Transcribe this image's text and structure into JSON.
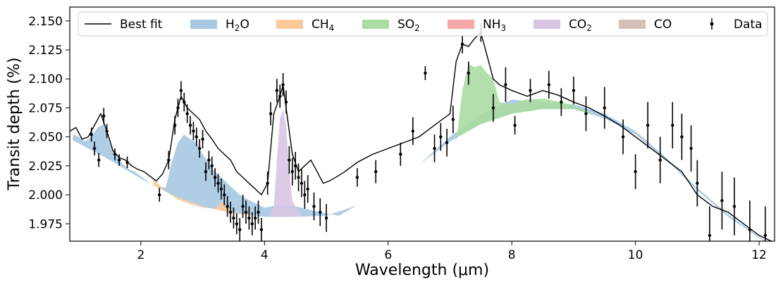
{
  "chart_data": {
    "type": "area",
    "xlabel": "Wavelength (μm)",
    "ylabel": "Transit depth (%)",
    "xlim": [
      0.85,
      12.25
    ],
    "ylim": [
      1.96,
      2.162
    ],
    "x_ticks": [
      2,
      4,
      6,
      8,
      10,
      12
    ],
    "y_ticks": [
      1.975,
      2.0,
      2.025,
      2.05,
      2.075,
      2.1,
      2.125,
      2.15
    ],
    "x_tick_labels": [
      "2",
      "4",
      "6",
      "8",
      "10",
      "12"
    ],
    "y_tick_labels": [
      "1.975",
      "2.000",
      "2.025",
      "2.050",
      "2.075",
      "2.100",
      "2.125",
      "2.150"
    ],
    "legend": [
      {
        "key": "best_fit",
        "label": "Best fit",
        "kind": "line",
        "color": "#000000"
      },
      {
        "key": "H2O",
        "label": "H",
        "sub": "2",
        "suffix": "O",
        "kind": "patch",
        "color": "#a6c8e2"
      },
      {
        "key": "CH4",
        "label": "CH",
        "sub": "4",
        "suffix": "",
        "kind": "patch",
        "color": "#fcc99a"
      },
      {
        "key": "SO2",
        "label": "SO",
        "sub": "2",
        "suffix": "",
        "kind": "patch",
        "color": "#abdca3"
      },
      {
        "key": "NH3",
        "label": "NH",
        "sub": "3",
        "suffix": "",
        "kind": "patch",
        "color": "#f4a9a8"
      },
      {
        "key": "CO2",
        "label": "CO",
        "sub": "2",
        "suffix": "",
        "kind": "patch",
        "color": "#d8c5e4"
      },
      {
        "key": "CO",
        "label": "CO",
        "sub": "",
        "suffix": "",
        "kind": "patch",
        "color": "#d6bfb8"
      },
      {
        "key": "data",
        "label": "Data",
        "kind": "errorbar",
        "color": "#000000"
      }
    ],
    "series": [
      {
        "name": "baseline",
        "x": [
          0.9,
          1.5,
          2.0,
          2.5,
          3.0,
          3.5,
          4.0,
          4.5,
          5.0,
          5.5,
          6.0,
          6.5,
          7.0,
          7.5,
          8.0,
          8.5,
          9.0,
          9.5,
          10.0,
          10.5,
          11.0,
          11.5,
          12.0,
          12.2
        ],
        "values": [
          2.047,
          2.03,
          2.014,
          2.0,
          1.99,
          1.984,
          1.981,
          1.981,
          1.982,
          1.991,
          2.007,
          2.026,
          2.046,
          2.061,
          2.07,
          2.074,
          2.074,
          2.066,
          2.052,
          2.03,
          2.004,
          1.981,
          1.963,
          1.955
        ]
      },
      {
        "name": "H2O",
        "color": "#a6c8e2",
        "x": [
          0.9,
          1.0,
          1.1,
          1.2,
          1.3,
          1.4,
          1.5,
          1.6,
          1.7,
          1.8,
          1.9,
          2.0,
          2.2,
          2.4,
          2.5,
          2.6,
          2.7,
          2.8,
          2.9,
          3.0,
          3.2,
          3.4,
          3.6,
          3.8,
          4.0,
          4.2,
          4.4,
          4.6,
          4.8,
          5.0,
          5.2,
          5.5,
          6.0,
          6.5,
          7.0,
          7.5,
          8.0,
          8.5,
          9.0,
          9.5,
          10.0,
          10.5,
          11.0,
          11.5,
          12.0,
          12.2
        ],
        "values": [
          2.052,
          2.05,
          2.046,
          2.05,
          2.058,
          2.061,
          2.044,
          2.034,
          2.027,
          2.022,
          2.02,
          2.016,
          2.008,
          2.006,
          2.028,
          2.045,
          2.052,
          2.048,
          2.045,
          2.035,
          2.02,
          2.01,
          2.0,
          1.994,
          1.989,
          1.991,
          1.991,
          1.989,
          1.986,
          1.984,
          1.982,
          1.991,
          2.007,
          2.026,
          2.05,
          2.07,
          2.082,
          2.08,
          2.078,
          2.07,
          2.055,
          2.032,
          2.006,
          1.983,
          1.964,
          1.956
        ]
      },
      {
        "name": "CH4",
        "color": "#fcc99a",
        "x": [
          2.2,
          2.4,
          2.6,
          2.8,
          3.0,
          3.2,
          3.3,
          3.4,
          3.5,
          3.6,
          3.8
        ],
        "values": [
          2.014,
          2.003,
          1.996,
          1.992,
          1.989,
          1.988,
          1.994,
          1.99,
          1.985,
          1.984,
          1.983
        ]
      },
      {
        "name": "CO2",
        "color": "#d8c5e4",
        "x": [
          4.1,
          4.15,
          4.2,
          4.25,
          4.3,
          4.35,
          4.4,
          4.45,
          4.5,
          4.55,
          4.6
        ],
        "values": [
          1.985,
          1.99,
          2.03,
          2.066,
          2.074,
          2.06,
          2.02,
          1.995,
          1.99,
          1.986,
          1.983
        ]
      },
      {
        "name": "SO2",
        "color": "#abdca3",
        "x": [
          7.1,
          7.2,
          7.3,
          7.4,
          7.5,
          7.6,
          7.7,
          7.8,
          8.0,
          8.2,
          8.5,
          8.8,
          9.0,
          9.3
        ],
        "values": [
          2.045,
          2.09,
          2.113,
          2.11,
          2.112,
          2.105,
          2.1,
          2.08,
          2.078,
          2.082,
          2.083,
          2.08,
          2.077,
          2.07
        ]
      },
      {
        "name": "Best fit",
        "color": "#000000",
        "x": [
          0.85,
          0.95,
          1.05,
          1.15,
          1.25,
          1.35,
          1.45,
          1.55,
          1.65,
          1.75,
          1.85,
          1.95,
          2.05,
          2.15,
          2.25,
          2.35,
          2.45,
          2.55,
          2.65,
          2.75,
          2.85,
          2.95,
          3.05,
          3.15,
          3.25,
          3.35,
          3.45,
          3.55,
          3.65,
          3.75,
          3.85,
          3.95,
          4.05,
          4.15,
          4.25,
          4.3,
          4.35,
          4.45,
          4.55,
          4.65,
          4.75,
          4.85,
          4.95,
          5.05,
          5.15,
          5.3,
          5.5,
          5.75,
          6.0,
          6.25,
          6.5,
          6.75,
          7.0,
          7.1,
          7.2,
          7.3,
          7.4,
          7.5,
          7.6,
          7.7,
          7.8,
          8.0,
          8.25,
          8.5,
          8.75,
          9.0,
          9.25,
          9.5,
          9.75,
          10.0,
          10.25,
          10.5,
          10.75,
          11.0,
          11.25,
          11.5,
          11.75,
          12.0,
          12.2
        ],
        "values": [
          2.055,
          2.058,
          2.048,
          2.05,
          2.06,
          2.07,
          2.055,
          2.038,
          2.032,
          2.03,
          2.025,
          2.022,
          2.02,
          2.016,
          2.012,
          2.018,
          2.03,
          2.065,
          2.085,
          2.075,
          2.07,
          2.065,
          2.055,
          2.048,
          2.04,
          2.035,
          2.03,
          2.02,
          2.015,
          2.01,
          2.005,
          2.0,
          2.01,
          2.07,
          2.085,
          2.095,
          2.075,
          2.035,
          2.02,
          2.025,
          2.03,
          2.02,
          2.01,
          2.012,
          2.015,
          2.02,
          2.028,
          2.035,
          2.04,
          2.045,
          2.05,
          2.06,
          2.07,
          2.115,
          2.13,
          2.128,
          2.135,
          2.14,
          2.12,
          2.1,
          2.095,
          2.09,
          2.085,
          2.09,
          2.086,
          2.08,
          2.075,
          2.068,
          2.06,
          2.05,
          2.04,
          2.03,
          2.02,
          2.0,
          1.99,
          1.985,
          1.975,
          1.965,
          1.96
        ]
      }
    ],
    "data_points": {
      "x": [
        1.2,
        1.25,
        1.32,
        1.4,
        1.45,
        1.58,
        1.65,
        1.78,
        2.3,
        2.45,
        2.55,
        2.6,
        2.65,
        2.7,
        2.75,
        2.8,
        2.85,
        2.9,
        2.95,
        3.0,
        3.05,
        3.1,
        3.15,
        3.2,
        3.25,
        3.3,
        3.35,
        3.4,
        3.45,
        3.5,
        3.55,
        3.6,
        3.65,
        3.7,
        3.75,
        3.8,
        3.85,
        3.9,
        3.95,
        4.05,
        4.1,
        4.2,
        4.25,
        4.3,
        4.35,
        4.4,
        4.45,
        4.5,
        4.55,
        4.6,
        4.65,
        4.7,
        4.8,
        4.9,
        5.0,
        5.5,
        5.8,
        6.2,
        6.4,
        6.6,
        6.75,
        6.85,
        6.95,
        7.05,
        7.2,
        7.3,
        7.5,
        7.7,
        7.9,
        8.05,
        8.3,
        8.6,
        8.8,
        9.0,
        9.2,
        9.5,
        9.8,
        10.0,
        10.2,
        10.4,
        10.6,
        10.75,
        10.9,
        11.0,
        11.2,
        11.4,
        11.6,
        11.85,
        12.1
      ],
      "values": [
        2.052,
        2.04,
        2.03,
        2.068,
        2.055,
        2.035,
        2.03,
        2.028,
        2.0,
        2.03,
        2.06,
        2.075,
        2.09,
        2.08,
        2.07,
        2.06,
        2.055,
        2.05,
        2.04,
        2.048,
        2.02,
        2.03,
        2.025,
        2.015,
        2.01,
        2.005,
        2.0,
        1.99,
        1.985,
        1.98,
        1.975,
        1.97,
        1.99,
        1.985,
        1.98,
        1.975,
        1.98,
        1.985,
        1.97,
        2.01,
        2.07,
        2.09,
        2.085,
        2.095,
        2.08,
        2.03,
        2.02,
        2.025,
        2.015,
        2.01,
        2.0,
        2.005,
        1.99,
        1.985,
        1.98,
        2.015,
        2.02,
        2.035,
        2.055,
        2.105,
        2.04,
        2.05,
        2.045,
        2.065,
        2.13,
        2.105,
        2.14,
        2.075,
        2.095,
        2.06,
        2.09,
        2.095,
        2.08,
        2.09,
        2.07,
        2.075,
        2.05,
        2.02,
        2.06,
        2.03,
        2.06,
        2.05,
        2.04,
        2.01,
        1.965,
        1.995,
        1.99,
        1.97,
        1.965
      ],
      "errors": [
        0.006,
        0.006,
        0.006,
        0.007,
        0.006,
        0.005,
        0.005,
        0.005,
        0.006,
        0.008,
        0.008,
        0.008,
        0.008,
        0.008,
        0.008,
        0.008,
        0.008,
        0.008,
        0.008,
        0.008,
        0.008,
        0.008,
        0.008,
        0.008,
        0.008,
        0.009,
        0.009,
        0.009,
        0.009,
        0.009,
        0.009,
        0.01,
        0.01,
        0.01,
        0.01,
        0.01,
        0.01,
        0.01,
        0.01,
        0.01,
        0.01,
        0.01,
        0.01,
        0.01,
        0.01,
        0.012,
        0.012,
        0.012,
        0.012,
        0.012,
        0.012,
        0.012,
        0.012,
        0.012,
        0.012,
        0.008,
        0.01,
        0.01,
        0.012,
        0.006,
        0.012,
        0.012,
        0.012,
        0.012,
        0.008,
        0.01,
        0.008,
        0.012,
        0.015,
        0.008,
        0.01,
        0.012,
        0.012,
        0.012,
        0.015,
        0.018,
        0.015,
        0.015,
        0.02,
        0.02,
        0.02,
        0.02,
        0.02,
        0.02,
        0.025,
        0.025,
        0.025,
        0.025,
        0.025
      ]
    }
  }
}
